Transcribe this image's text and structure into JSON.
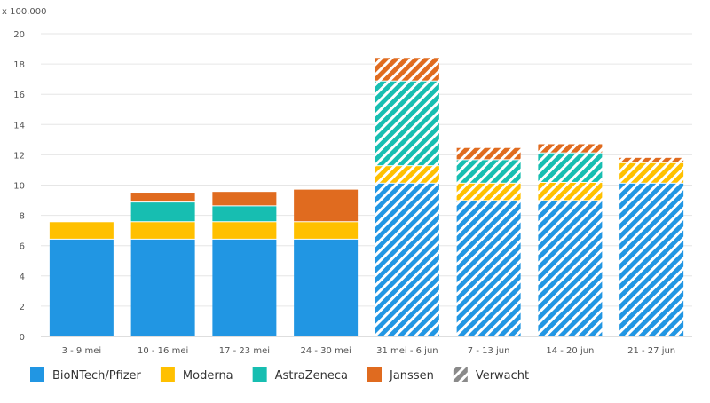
{
  "chart_data": {
    "type": "bar",
    "stacked": true,
    "unit_label": "x 100.000",
    "ylim": [
      0,
      20
    ],
    "yticks": [
      0,
      2,
      4,
      6,
      8,
      10,
      12,
      14,
      16,
      18,
      20
    ],
    "categories": [
      "3 - 9 mei",
      "10 - 16 mei",
      "17 - 23 mei",
      "24 - 30 mei",
      "31 mei - 6 jun",
      "7 - 13 jun",
      "14 - 20 jun",
      "21 - 27 jun"
    ],
    "projected": [
      false,
      false,
      false,
      false,
      true,
      true,
      true,
      true
    ],
    "series": [
      {
        "name": "BioNTech/Pfizer",
        "color": "#2196e3",
        "values": [
          6.4,
          6.4,
          6.4,
          6.4,
          10.1,
          8.95,
          8.95,
          10.1
        ]
      },
      {
        "name": "Moderna",
        "color": "#ffc000",
        "values": [
          1.15,
          1.15,
          1.15,
          1.15,
          1.15,
          1.15,
          1.2,
          1.35
        ]
      },
      {
        "name": "AstraZeneca",
        "color": "#17beb1",
        "values": [
          0,
          1.3,
          1.05,
          0,
          5.6,
          1.55,
          1.95,
          0
        ]
      },
      {
        "name": "Janssen",
        "color": "#e06b1f",
        "values": [
          0,
          0.65,
          0.95,
          2.15,
          1.55,
          0.8,
          0.6,
          0.35
        ]
      }
    ],
    "legend": [
      {
        "label": "BioNTech/Pfizer",
        "color": "#2196e3",
        "pattern": false
      },
      {
        "label": "Moderna",
        "color": "#ffc000",
        "pattern": false
      },
      {
        "label": "AstraZeneca",
        "color": "#17beb1",
        "pattern": false
      },
      {
        "label": "Janssen",
        "color": "#e06b1f",
        "pattern": false
      },
      {
        "label": "Verwacht",
        "color": "#8a8a8a",
        "pattern": true
      }
    ],
    "legend_position": "bottom-left"
  }
}
